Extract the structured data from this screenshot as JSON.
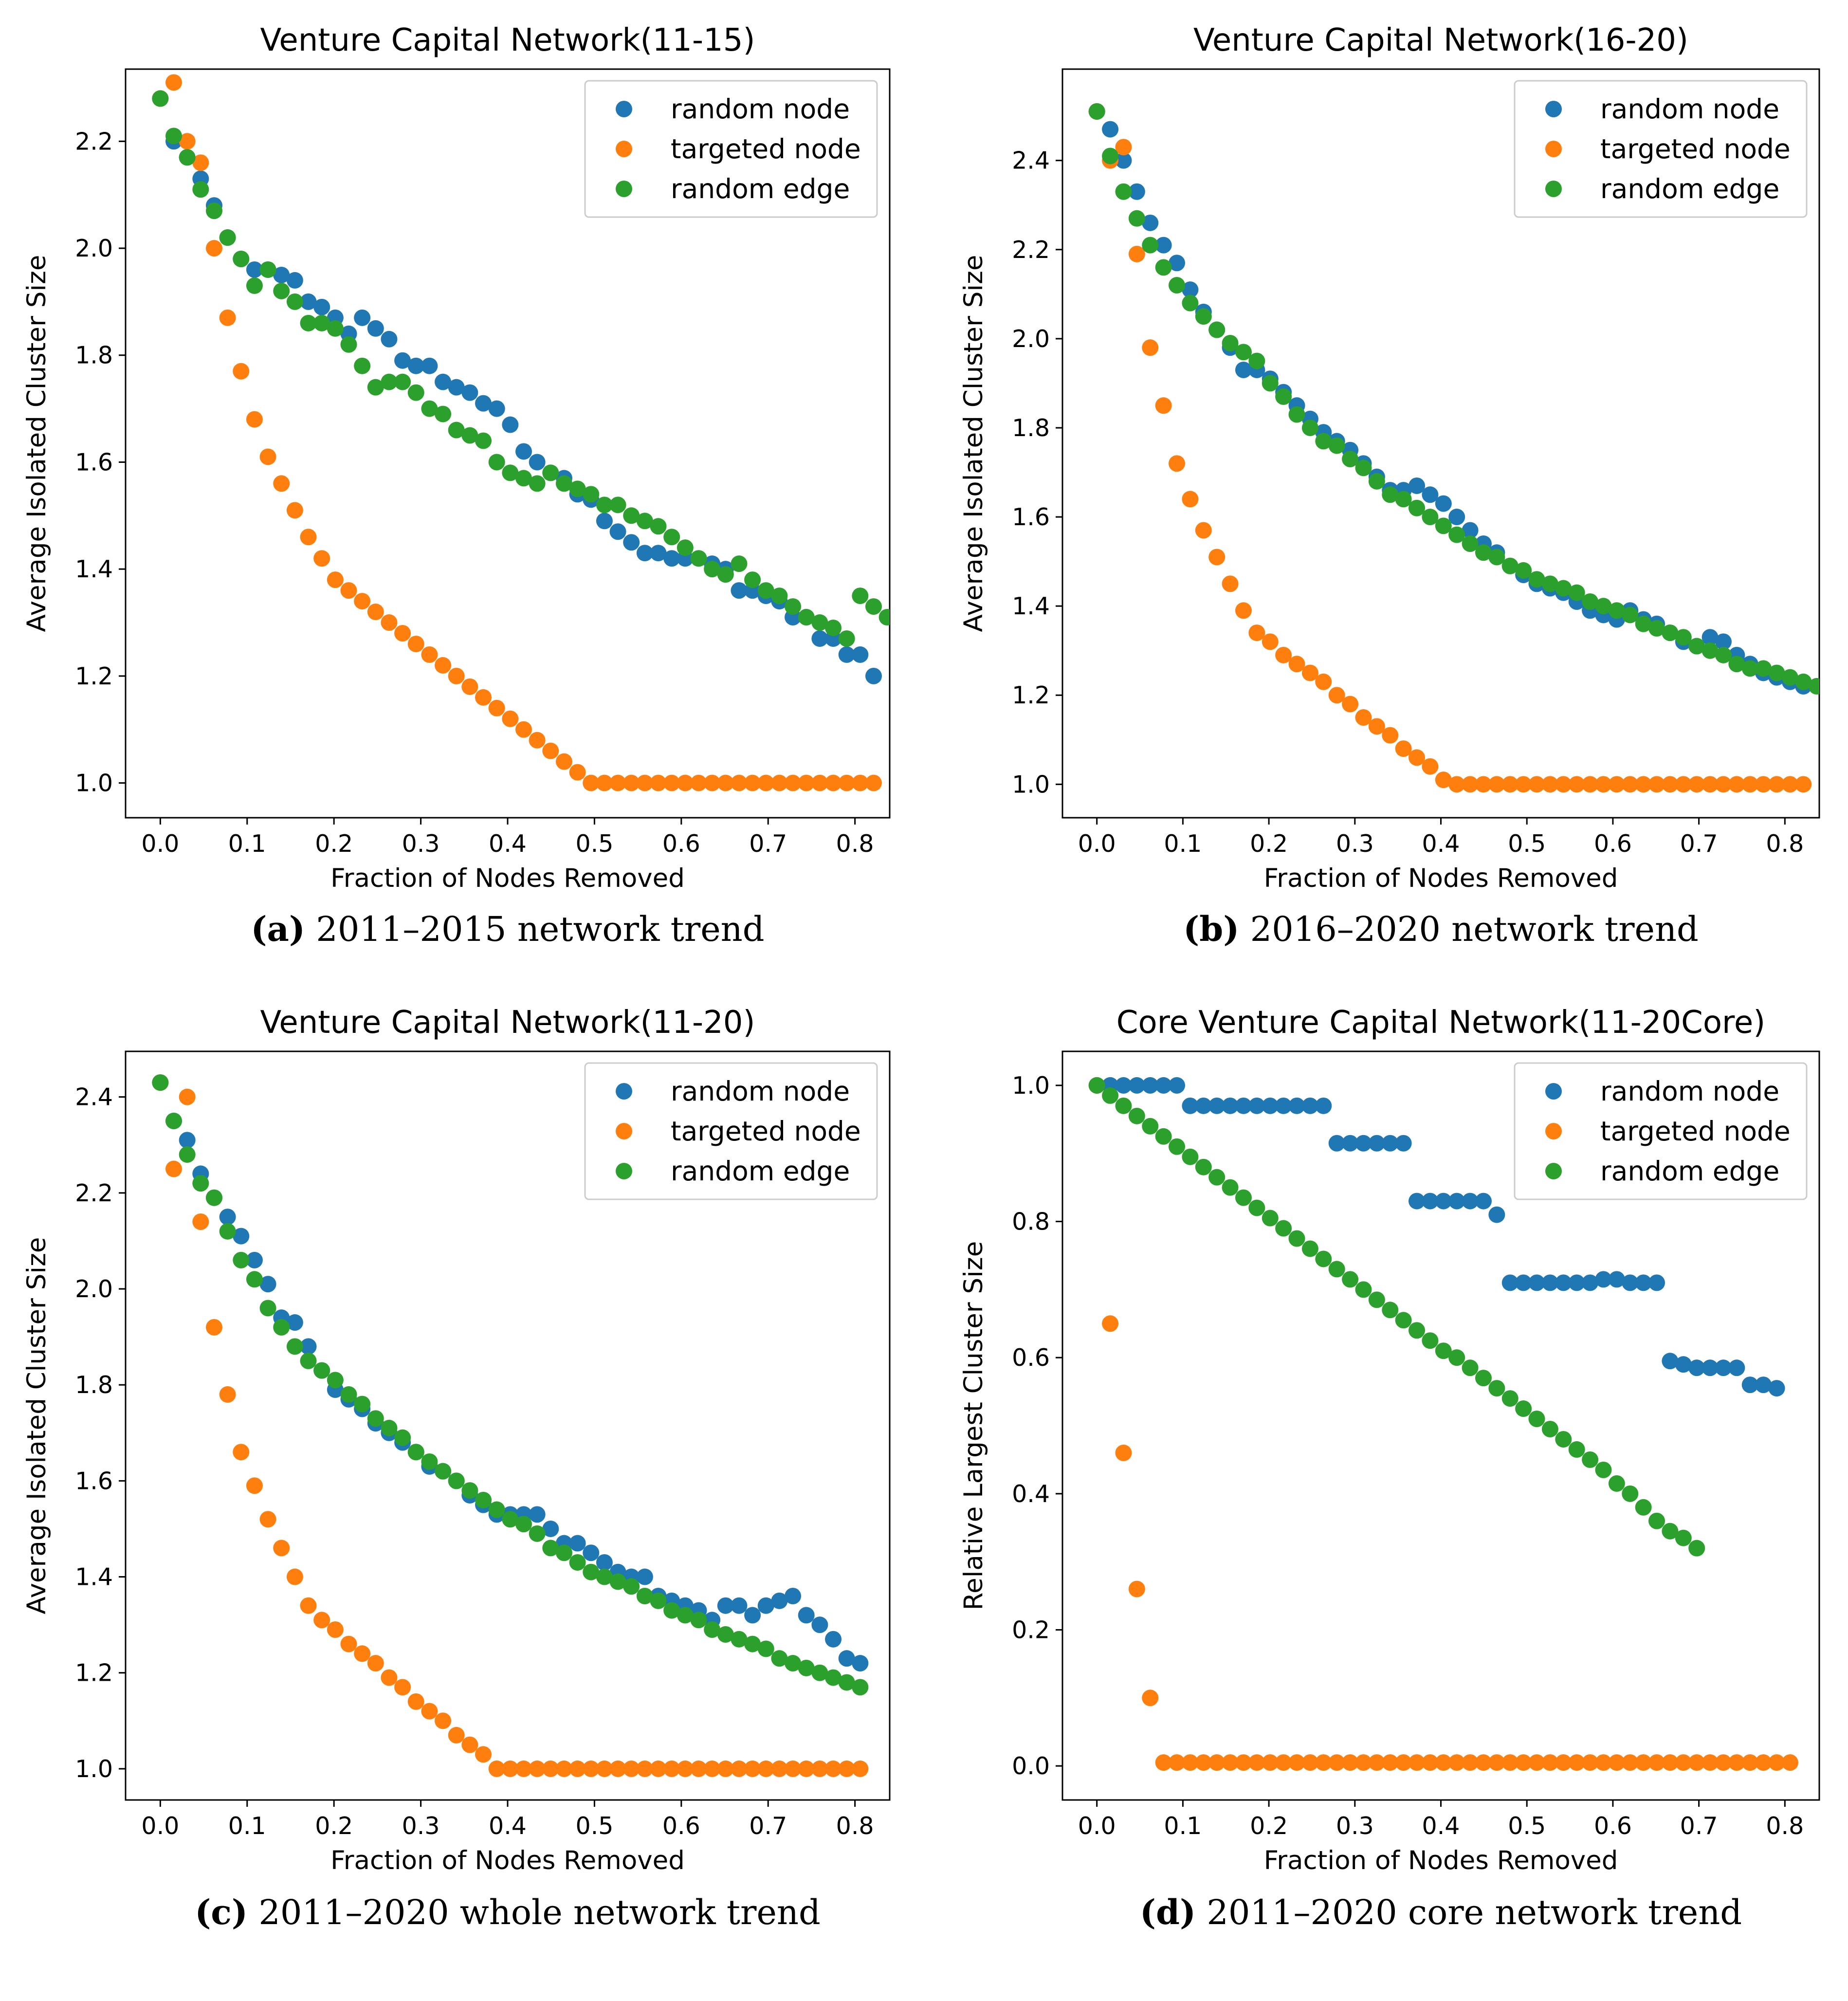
{
  "colors": {
    "random_node": "#1f77b4",
    "targeted_node": "#ff7f0e",
    "random_edge": "#2ca02c"
  },
  "chart_data": [
    {
      "type": "scatter",
      "title": "Venture Capital Network(11-15)",
      "xlabel": "Fraction of Nodes Removed",
      "ylabel": "Average Isolated Cluster Size",
      "xlim": [
        -0.04,
        0.84
      ],
      "ylim": [
        0.935,
        2.335
      ],
      "xticks": [
        0.0,
        0.1,
        0.2,
        0.3,
        0.4,
        0.5,
        0.6,
        0.7,
        0.8
      ],
      "xtick_labels": [
        "0.0",
        "0.1",
        "0.2",
        "0.3",
        "0.4",
        "0.5",
        "0.6",
        "0.7",
        "0.8"
      ],
      "yticks": [
        1.0,
        1.2,
        1.4,
        1.6,
        1.8,
        2.0,
        2.2
      ],
      "ytick_labels": [
        "1.0",
        "1.2",
        "1.4",
        "1.6",
        "1.8",
        "2.0",
        "2.2"
      ],
      "legend": "top-right",
      "caption_letter": "(a)",
      "caption_text": " 2011–2015 network trend",
      "series": [
        {
          "name": "random node",
          "key": "random_node",
          "x_start": 0.0,
          "x_step": 0.0155,
          "values": [
            2.28,
            2.2,
            2.17,
            2.13,
            2.08,
            2.02,
            1.98,
            1.96,
            1.96,
            1.95,
            1.94,
            1.9,
            1.89,
            1.87,
            1.84,
            1.87,
            1.85,
            1.83,
            1.79,
            1.78,
            1.78,
            1.75,
            1.74,
            1.73,
            1.71,
            1.7,
            1.67,
            1.62,
            1.6,
            1.58,
            1.57,
            1.54,
            1.53,
            1.49,
            1.47,
            1.45,
            1.43,
            1.43,
            1.42,
            1.42,
            1.42,
            1.41,
            1.4,
            1.36,
            1.36,
            1.35,
            1.34,
            1.31,
            1.31,
            1.27,
            1.27,
            1.24,
            1.24,
            1.2
          ]
        },
        {
          "name": "targeted node",
          "key": "targeted_node",
          "x_start": 0.0,
          "x_step": 0.0155,
          "values": [
            2.28,
            2.31,
            2.2,
            2.16,
            2.0,
            1.87,
            1.77,
            1.68,
            1.61,
            1.56,
            1.51,
            1.46,
            1.42,
            1.38,
            1.36,
            1.34,
            1.32,
            1.3,
            1.28,
            1.26,
            1.24,
            1.22,
            1.2,
            1.18,
            1.16,
            1.14,
            1.12,
            1.1,
            1.08,
            1.06,
            1.04,
            1.02,
            1.0,
            1.0,
            1.0,
            1.0,
            1.0,
            1.0,
            1.0,
            1.0,
            1.0,
            1.0,
            1.0,
            1.0,
            1.0,
            1.0,
            1.0,
            1.0,
            1.0,
            1.0,
            1.0,
            1.0,
            1.0,
            1.0
          ]
        },
        {
          "name": "random edge",
          "key": "random_edge",
          "x_start": 0.0,
          "x_step": 0.0155,
          "values": [
            2.28,
            2.21,
            2.17,
            2.11,
            2.07,
            2.02,
            1.98,
            1.93,
            1.96,
            1.92,
            1.9,
            1.86,
            1.86,
            1.85,
            1.82,
            1.78,
            1.74,
            1.75,
            1.75,
            1.73,
            1.7,
            1.69,
            1.66,
            1.65,
            1.64,
            1.6,
            1.58,
            1.57,
            1.56,
            1.58,
            1.56,
            1.55,
            1.54,
            1.52,
            1.52,
            1.5,
            1.49,
            1.48,
            1.46,
            1.44,
            1.42,
            1.4,
            1.39,
            1.41,
            1.38,
            1.36,
            1.35,
            1.33,
            1.31,
            1.3,
            1.29,
            1.27,
            1.35,
            1.33,
            1.31
          ]
        }
      ]
    },
    {
      "type": "scatter",
      "title": "Venture Capital Network(16-20)",
      "xlabel": "Fraction of Nodes Removed",
      "ylabel": "Average Isolated Cluster Size",
      "xlim": [
        -0.04,
        0.84
      ],
      "ylim": [
        0.925,
        2.605
      ],
      "xticks": [
        0.0,
        0.1,
        0.2,
        0.3,
        0.4,
        0.5,
        0.6,
        0.7,
        0.8
      ],
      "xtick_labels": [
        "0.0",
        "0.1",
        "0.2",
        "0.3",
        "0.4",
        "0.5",
        "0.6",
        "0.7",
        "0.8"
      ],
      "yticks": [
        1.0,
        1.2,
        1.4,
        1.6,
        1.8,
        2.0,
        2.2,
        2.4
      ],
      "ytick_labels": [
        "1.0",
        "1.2",
        "1.4",
        "1.6",
        "1.8",
        "2.0",
        "2.2",
        "2.4"
      ],
      "legend": "top-right",
      "caption_letter": "(b)",
      "caption_text": " 2016–2020 network trend",
      "series": [
        {
          "name": "random node",
          "key": "random_node",
          "x_start": 0.0,
          "x_step": 0.0155,
          "values": [
            2.51,
            2.47,
            2.4,
            2.33,
            2.26,
            2.21,
            2.17,
            2.11,
            2.06,
            2.02,
            1.98,
            1.93,
            1.93,
            1.91,
            1.88,
            1.85,
            1.82,
            1.79,
            1.77,
            1.75,
            1.72,
            1.69,
            1.66,
            1.66,
            1.67,
            1.65,
            1.63,
            1.6,
            1.57,
            1.54,
            1.52,
            1.49,
            1.47,
            1.45,
            1.44,
            1.43,
            1.41,
            1.39,
            1.38,
            1.37,
            1.39,
            1.37,
            1.36,
            1.34,
            1.32,
            1.31,
            1.33,
            1.32,
            1.29,
            1.27,
            1.25,
            1.24,
            1.23,
            1.22
          ]
        },
        {
          "name": "targeted node",
          "key": "targeted_node",
          "x_start": 0.0,
          "x_step": 0.0155,
          "values": [
            2.51,
            2.4,
            2.43,
            2.19,
            1.98,
            1.85,
            1.72,
            1.64,
            1.57,
            1.51,
            1.45,
            1.39,
            1.34,
            1.32,
            1.29,
            1.27,
            1.25,
            1.23,
            1.2,
            1.18,
            1.15,
            1.13,
            1.11,
            1.08,
            1.06,
            1.04,
            1.01,
            1.0,
            1.0,
            1.0,
            1.0,
            1.0,
            1.0,
            1.0,
            1.0,
            1.0,
            1.0,
            1.0,
            1.0,
            1.0,
            1.0,
            1.0,
            1.0,
            1.0,
            1.0,
            1.0,
            1.0,
            1.0,
            1.0,
            1.0,
            1.0,
            1.0,
            1.0,
            1.0
          ]
        },
        {
          "name": "random edge",
          "key": "random_edge",
          "x_start": 0.0,
          "x_step": 0.0155,
          "values": [
            2.51,
            2.41,
            2.33,
            2.27,
            2.21,
            2.16,
            2.12,
            2.08,
            2.05,
            2.02,
            1.99,
            1.97,
            1.95,
            1.9,
            1.87,
            1.83,
            1.8,
            1.77,
            1.76,
            1.73,
            1.71,
            1.68,
            1.65,
            1.64,
            1.62,
            1.6,
            1.58,
            1.56,
            1.54,
            1.52,
            1.51,
            1.49,
            1.48,
            1.46,
            1.45,
            1.44,
            1.43,
            1.41,
            1.4,
            1.39,
            1.38,
            1.36,
            1.35,
            1.34,
            1.33,
            1.31,
            1.3,
            1.29,
            1.27,
            1.26,
            1.26,
            1.25,
            1.24,
            1.23,
            1.22
          ]
        }
      ]
    },
    {
      "type": "scatter",
      "title": "Venture Capital Network(11-20)",
      "xlabel": "Fraction of Nodes Removed",
      "ylabel": "Average Isolated Cluster Size",
      "xlim": [
        -0.04,
        0.84
      ],
      "ylim": [
        0.935,
        2.495
      ],
      "xticks": [
        0.0,
        0.1,
        0.2,
        0.3,
        0.4,
        0.5,
        0.6,
        0.7,
        0.8
      ],
      "xtick_labels": [
        "0.0",
        "0.1",
        "0.2",
        "0.3",
        "0.4",
        "0.5",
        "0.6",
        "0.7",
        "0.8"
      ],
      "yticks": [
        1.0,
        1.2,
        1.4,
        1.6,
        1.8,
        2.0,
        2.2,
        2.4
      ],
      "ytick_labels": [
        "1.0",
        "1.2",
        "1.4",
        "1.6",
        "1.8",
        "2.0",
        "2.2",
        "2.4"
      ],
      "legend": "top-right",
      "caption_letter": "(c)",
      "caption_text": " 2011–2020 whole network trend",
      "series": [
        {
          "name": "random node",
          "key": "random_node",
          "x_start": 0.0,
          "x_step": 0.0155,
          "values": [
            2.43,
            2.35,
            2.31,
            2.24,
            2.19,
            2.15,
            2.11,
            2.06,
            2.01,
            1.94,
            1.93,
            1.88,
            1.83,
            1.79,
            1.77,
            1.75,
            1.72,
            1.7,
            1.68,
            1.66,
            1.63,
            1.62,
            1.6,
            1.57,
            1.55,
            1.53,
            1.53,
            1.53,
            1.53,
            1.5,
            1.47,
            1.47,
            1.45,
            1.43,
            1.41,
            1.4,
            1.4,
            1.36,
            1.35,
            1.34,
            1.33,
            1.31,
            1.34,
            1.34,
            1.32,
            1.34,
            1.35,
            1.36,
            1.32,
            1.3,
            1.27,
            1.23,
            1.22
          ]
        },
        {
          "name": "targeted node",
          "key": "targeted_node",
          "x_start": 0.0,
          "x_step": 0.0155,
          "values": [
            2.43,
            2.25,
            2.4,
            2.14,
            1.92,
            1.78,
            1.66,
            1.59,
            1.52,
            1.46,
            1.4,
            1.34,
            1.31,
            1.29,
            1.26,
            1.24,
            1.22,
            1.19,
            1.17,
            1.14,
            1.12,
            1.1,
            1.07,
            1.05,
            1.03,
            1.0,
            1.0,
            1.0,
            1.0,
            1.0,
            1.0,
            1.0,
            1.0,
            1.0,
            1.0,
            1.0,
            1.0,
            1.0,
            1.0,
            1.0,
            1.0,
            1.0,
            1.0,
            1.0,
            1.0,
            1.0,
            1.0,
            1.0,
            1.0,
            1.0,
            1.0,
            1.0,
            1.0
          ]
        },
        {
          "name": "random edge",
          "key": "random_edge",
          "x_start": 0.0,
          "x_step": 0.0155,
          "values": [
            2.43,
            2.35,
            2.28,
            2.22,
            2.19,
            2.12,
            2.06,
            2.02,
            1.96,
            1.92,
            1.88,
            1.85,
            1.83,
            1.81,
            1.78,
            1.76,
            1.73,
            1.71,
            1.69,
            1.66,
            1.64,
            1.62,
            1.6,
            1.58,
            1.56,
            1.54,
            1.52,
            1.51,
            1.49,
            1.46,
            1.45,
            1.43,
            1.41,
            1.4,
            1.39,
            1.38,
            1.36,
            1.35,
            1.33,
            1.32,
            1.31,
            1.29,
            1.28,
            1.27,
            1.26,
            1.25,
            1.23,
            1.22,
            1.21,
            1.2,
            1.19,
            1.18,
            1.17
          ]
        }
      ]
    },
    {
      "type": "scatter",
      "title": "Core Venture Capital Network(11-20Core)",
      "xlabel": "Fraction of Nodes Removed",
      "ylabel": "Relative Largest Cluster Size",
      "xlim": [
        -0.04,
        0.84
      ],
      "ylim": [
        -0.05,
        1.05
      ],
      "xticks": [
        0.0,
        0.1,
        0.2,
        0.3,
        0.4,
        0.5,
        0.6,
        0.7,
        0.8
      ],
      "xtick_labels": [
        "0.0",
        "0.1",
        "0.2",
        "0.3",
        "0.4",
        "0.5",
        "0.6",
        "0.7",
        "0.8"
      ],
      "yticks": [
        0.0,
        0.2,
        0.4,
        0.6,
        0.8,
        1.0
      ],
      "ytick_labels": [
        "0.0",
        "0.2",
        "0.4",
        "0.6",
        "0.8",
        "1.0"
      ],
      "legend": "top-right",
      "caption_letter": "(d)",
      "caption_text": " 2011–2020 core network trend",
      "series": [
        {
          "name": "random node",
          "key": "random_node",
          "x_start": 0.0,
          "x_step": 0.0155,
          "values": [
            1.0,
            1.0,
            1.0,
            1.0,
            1.0,
            1.0,
            1.0,
            0.97,
            0.97,
            0.97,
            0.97,
            0.97,
            0.97,
            0.97,
            0.97,
            0.97,
            0.97,
            0.97,
            0.915,
            0.915,
            0.915,
            0.915,
            0.915,
            0.915,
            0.83,
            0.83,
            0.83,
            0.83,
            0.83,
            0.83,
            0.81,
            0.71,
            0.71,
            0.71,
            0.71,
            0.71,
            0.71,
            0.71,
            0.715,
            0.715,
            0.71,
            0.71,
            0.71,
            0.595,
            0.59,
            0.585,
            0.585,
            0.585,
            0.585,
            0.56,
            0.56,
            0.555
          ]
        },
        {
          "name": "targeted node",
          "key": "targeted_node",
          "x_start": 0.0,
          "x_step": 0.0155,
          "values": [
            1.0,
            0.65,
            0.46,
            0.26,
            0.1,
            0.005,
            0.005,
            0.005,
            0.005,
            0.005,
            0.005,
            0.005,
            0.005,
            0.005,
            0.005,
            0.005,
            0.005,
            0.005,
            0.005,
            0.005,
            0.005,
            0.005,
            0.005,
            0.005,
            0.005,
            0.005,
            0.005,
            0.005,
            0.005,
            0.005,
            0.005,
            0.005,
            0.005,
            0.005,
            0.005,
            0.005,
            0.005,
            0.005,
            0.005,
            0.005,
            0.005,
            0.005,
            0.005,
            0.005,
            0.005,
            0.005,
            0.005,
            0.005,
            0.005,
            0.005,
            0.005,
            0.005,
            0.005
          ]
        },
        {
          "name": "random edge",
          "key": "random_edge",
          "x_start": 0.0,
          "x_step": 0.0155,
          "values": [
            1.0,
            0.985,
            0.97,
            0.955,
            0.94,
            0.925,
            0.91,
            0.895,
            0.88,
            0.865,
            0.85,
            0.835,
            0.82,
            0.805,
            0.79,
            0.775,
            0.76,
            0.745,
            0.73,
            0.715,
            0.7,
            0.685,
            0.67,
            0.655,
            0.64,
            0.625,
            0.61,
            0.6,
            0.585,
            0.57,
            0.555,
            0.54,
            0.525,
            0.51,
            0.495,
            0.48,
            0.465,
            0.45,
            0.435,
            0.415,
            0.4,
            0.38,
            0.36,
            0.345,
            0.335,
            0.32
          ]
        }
      ]
    }
  ]
}
